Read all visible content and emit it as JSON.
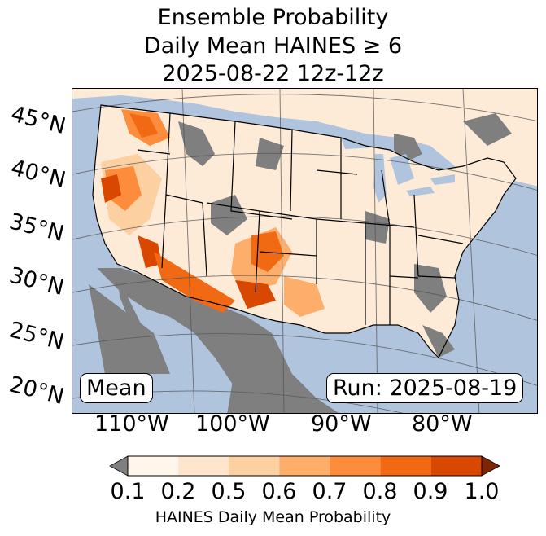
{
  "title": {
    "line1": "Ensemble Probability",
    "line2": "Daily Mean HAINES ≥ 6",
    "line3": "2025-08-22 12z-12z"
  },
  "map": {
    "lat_labels": [
      "45°N",
      "40°N",
      "35°N",
      "30°N",
      "25°N",
      "20°N"
    ],
    "lon_labels": [
      "110°W",
      "100°W",
      "90°W",
      "80°W"
    ],
    "stat_box": "Mean",
    "run_box": "Run: 2025-08-19",
    "colors": {
      "ocean": "#b0c4de",
      "land_low": "#7f7f7f",
      "land": "#fdebd8"
    }
  },
  "colorbar": {
    "ticks": [
      "0.1",
      "0.2",
      "0.5",
      "0.6",
      "0.7",
      "0.8",
      "0.9",
      "1.0"
    ],
    "label": "HAINES Daily Mean Probability",
    "under_color": "#7f7f7f",
    "over_color": "#7f2704",
    "colors": [
      "#fff5eb",
      "#fee6ce",
      "#fdd0a2",
      "#fdae6b",
      "#fd8d3c",
      "#f16913",
      "#d94801"
    ]
  }
}
